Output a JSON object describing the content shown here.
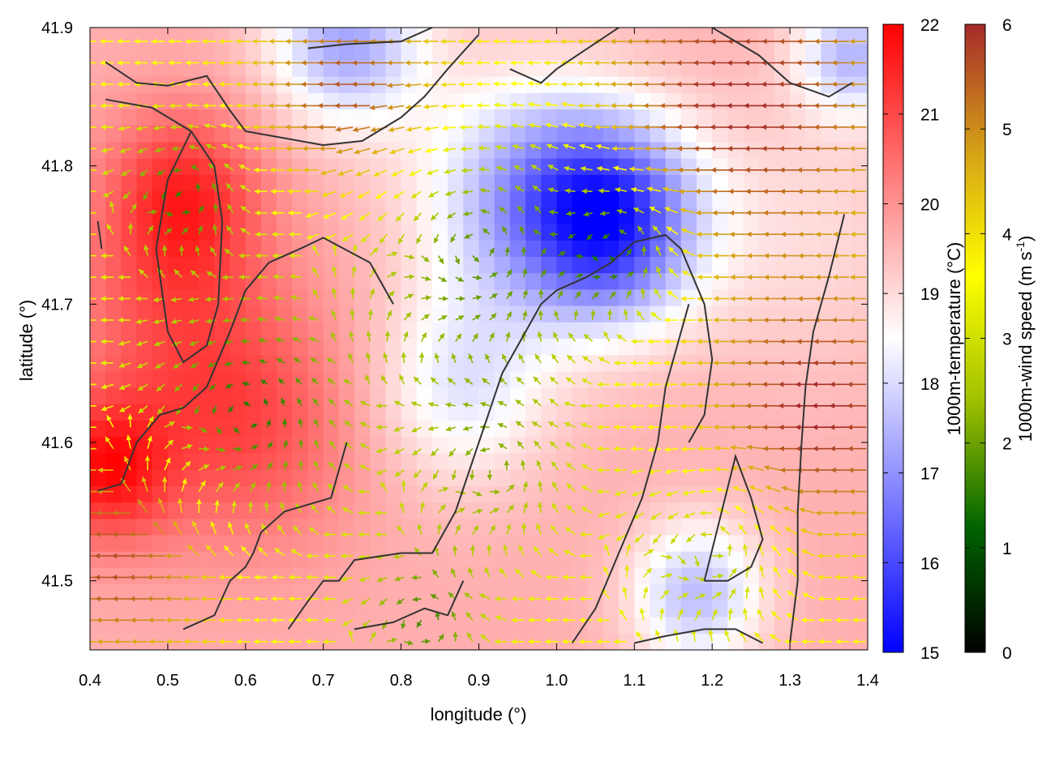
{
  "chart_data": {
    "type": "heatmap",
    "title": "",
    "xlabel": "longitude (°)",
    "ylabel": "latitude (°)",
    "xlim": [
      0.4,
      1.4
    ],
    "ylim": [
      41.45,
      41.9
    ],
    "x_ticks": [
      "0.4",
      "0.5",
      "0.6",
      "0.7",
      "0.8",
      "0.9",
      "1.0",
      "1.1",
      "1.2",
      "1.3",
      "1.4"
    ],
    "y_ticks": [
      "41.5",
      "41.6",
      "41.7",
      "41.8",
      "41.9"
    ],
    "colorbars": [
      {
        "label": "1000m-temperature (°C)",
        "range": [
          15,
          22
        ],
        "ticks": [
          "15",
          "16",
          "17",
          "18",
          "19",
          "20",
          "21",
          "22"
        ],
        "colors": [
          "#0000ff",
          "#ffffff",
          "#ff0000"
        ]
      },
      {
        "label_main": "1000m-wind speed (m s",
        "label_sup": "-1",
        "label_end": ")",
        "range": [
          0,
          6
        ],
        "ticks": [
          "0",
          "1",
          "2",
          "3",
          "4",
          "5",
          "6"
        ],
        "colors": [
          "#000000",
          "#006400",
          "#a0c000",
          "#ffff00",
          "#d4a017",
          "#a52a2a"
        ]
      }
    ],
    "temperature_field": {
      "background": 19.6,
      "features": [
        {
          "lon": 0.52,
          "lat": 41.78,
          "value": 21.2,
          "spread": 0.07
        },
        {
          "lon": 0.42,
          "lat": 41.58,
          "value": 21.6,
          "spread": 0.06
        },
        {
          "lon": 0.6,
          "lat": 41.61,
          "value": 20.9,
          "spread": 0.1
        },
        {
          "lon": 0.5,
          "lat": 41.7,
          "value": 20.6,
          "spread": 0.1
        },
        {
          "lon": 1.07,
          "lat": 41.76,
          "value": 16.0,
          "spread": 0.08
        },
        {
          "lon": 0.96,
          "lat": 41.78,
          "value": 17.6,
          "spread": 0.1
        },
        {
          "lon": 0.73,
          "lat": 41.89,
          "value": 17.3,
          "spread": 0.07
        },
        {
          "lon": 1.38,
          "lat": 41.88,
          "value": 17.6,
          "spread": 0.05
        },
        {
          "lon": 0.88,
          "lat": 41.64,
          "value": 18.2,
          "spread": 0.08
        },
        {
          "lon": 1.18,
          "lat": 41.49,
          "value": 17.6,
          "spread": 0.06
        },
        {
          "lon": 1.32,
          "lat": 41.75,
          "value": 19.0,
          "spread": 0.12
        }
      ]
    },
    "wind_field": {
      "background_speed": 3.6,
      "speed_features": [
        {
          "lon": 1.25,
          "lat": 41.85,
          "value": 6.0,
          "spread": 0.14
        },
        {
          "lon": 1.35,
          "lat": 41.62,
          "value": 6.0,
          "spread": 0.1
        },
        {
          "lon": 0.75,
          "lat": 41.85,
          "value": 5.8,
          "spread": 0.09
        },
        {
          "lon": 0.45,
          "lat": 41.52,
          "value": 5.8,
          "spread": 0.09
        },
        {
          "lon": 0.6,
          "lat": 41.62,
          "value": 1.4,
          "spread": 0.1
        },
        {
          "lon": 0.52,
          "lat": 41.78,
          "value": 1.6,
          "spread": 0.06
        },
        {
          "lon": 0.9,
          "lat": 41.74,
          "value": 1.8,
          "spread": 0.12
        },
        {
          "lon": 1.08,
          "lat": 41.74,
          "value": 1.6,
          "spread": 0.06
        },
        {
          "lon": 0.83,
          "lat": 41.47,
          "value": 1.8,
          "spread": 0.06
        },
        {
          "lon": 0.92,
          "lat": 41.58,
          "value": 2.4,
          "spread": 0.08
        },
        {
          "lon": 1.2,
          "lat": 41.52,
          "value": 2.6,
          "spread": 0.08
        }
      ],
      "prevailing_direction_deg": 180
    },
    "contours": [
      [
        [
          0.42,
          41.875
        ],
        [
          0.46,
          41.86
        ],
        [
          0.5,
          41.858
        ],
        [
          0.55,
          41.865
        ],
        [
          0.58,
          41.84
        ],
        [
          0.6,
          41.825
        ],
        [
          0.65,
          41.82
        ],
        [
          0.7,
          41.815
        ],
        [
          0.75,
          41.818
        ],
        [
          0.8,
          41.835
        ],
        [
          0.83,
          41.85
        ],
        [
          0.86,
          41.87
        ],
        [
          0.9,
          41.895
        ]
      ],
      [
        [
          0.42,
          41.848
        ],
        [
          0.48,
          41.842
        ],
        [
          0.53,
          41.825
        ],
        [
          0.56,
          41.8
        ],
        [
          0.57,
          41.76
        ],
        [
          0.565,
          41.7
        ],
        [
          0.55,
          41.67
        ],
        [
          0.52,
          41.658
        ],
        [
          0.5,
          41.68
        ],
        [
          0.485,
          41.74
        ],
        [
          0.5,
          41.79
        ],
        [
          0.53,
          41.825
        ]
      ],
      [
        [
          0.41,
          41.565
        ],
        [
          0.44,
          41.57
        ],
        [
          0.46,
          41.6
        ],
        [
          0.49,
          41.62
        ],
        [
          0.52,
          41.625
        ],
        [
          0.55,
          41.64
        ],
        [
          0.58,
          41.68
        ],
        [
          0.6,
          41.71
        ],
        [
          0.63,
          41.73
        ],
        [
          0.67,
          41.74
        ],
        [
          0.7,
          41.748
        ],
        [
          0.76,
          41.73
        ],
        [
          0.79,
          41.7
        ]
      ],
      [
        [
          0.52,
          41.465
        ],
        [
          0.56,
          41.475
        ],
        [
          0.58,
          41.5
        ],
        [
          0.6,
          41.51
        ],
        [
          0.61,
          41.52
        ],
        [
          0.62,
          41.535
        ],
        [
          0.65,
          41.55
        ],
        [
          0.68,
          41.555
        ],
        [
          0.71,
          41.56
        ],
        [
          0.72,
          41.58
        ],
        [
          0.73,
          41.6
        ]
      ],
      [
        [
          0.655,
          41.465
        ],
        [
          0.68,
          41.485
        ],
        [
          0.7,
          41.5
        ],
        [
          0.72,
          41.5
        ],
        [
          0.74,
          41.515
        ],
        [
          0.8,
          41.52
        ],
        [
          0.84,
          41.52
        ],
        [
          0.87,
          41.55
        ],
        [
          0.9,
          41.6
        ],
        [
          0.93,
          41.65
        ],
        [
          0.95,
          41.67
        ],
        [
          0.98,
          41.7
        ],
        [
          1.0,
          41.71
        ],
        [
          1.04,
          41.72
        ],
        [
          1.07,
          41.73
        ],
        [
          1.1,
          41.745
        ],
        [
          1.14,
          41.75
        ],
        [
          1.16,
          41.74
        ],
        [
          1.19,
          41.7
        ],
        [
          1.2,
          41.66
        ],
        [
          1.19,
          41.62
        ],
        [
          1.17,
          41.6
        ]
      ],
      [
        [
          0.74,
          41.465
        ],
        [
          0.79,
          41.47
        ],
        [
          0.83,
          41.48
        ],
        [
          0.86,
          41.475
        ],
        [
          0.88,
          41.5
        ]
      ],
      [
        [
          1.02,
          41.455
        ],
        [
          1.05,
          41.48
        ],
        [
          1.08,
          41.52
        ],
        [
          1.11,
          41.56
        ],
        [
          1.13,
          41.6
        ],
        [
          1.14,
          41.64
        ],
        [
          1.15,
          41.66
        ],
        [
          1.17,
          41.7
        ]
      ],
      [
        [
          1.19,
          41.5
        ],
        [
          1.22,
          41.5
        ],
        [
          1.25,
          41.51
        ],
        [
          1.265,
          41.53
        ],
        [
          1.25,
          41.56
        ],
        [
          1.23,
          41.59
        ],
        [
          1.19,
          41.5
        ]
      ],
      [
        [
          1.1,
          41.455
        ],
        [
          1.14,
          41.46
        ],
        [
          1.19,
          41.465
        ],
        [
          1.23,
          41.465
        ],
        [
          1.265,
          41.455
        ]
      ],
      [
        [
          1.3,
          41.455
        ],
        [
          1.31,
          41.5
        ],
        [
          1.31,
          41.55
        ],
        [
          1.315,
          41.6
        ],
        [
          1.32,
          41.64
        ],
        [
          1.33,
          41.68
        ],
        [
          1.35,
          41.72
        ],
        [
          1.37,
          41.765
        ]
      ],
      [
        [
          0.68,
          41.885
        ],
        [
          0.73,
          41.888
        ],
        [
          0.8,
          41.89
        ],
        [
          0.84,
          41.9
        ]
      ],
      [
        [
          0.94,
          41.87
        ],
        [
          0.98,
          41.86
        ],
        [
          1.0,
          41.87
        ],
        [
          1.04,
          41.885
        ],
        [
          1.08,
          41.9
        ]
      ],
      [
        [
          1.2,
          41.9
        ],
        [
          1.26,
          41.88
        ],
        [
          1.3,
          41.86
        ],
        [
          1.35,
          41.85
        ],
        [
          1.38,
          41.86
        ]
      ],
      [
        [
          0.41,
          41.76
        ],
        [
          0.415,
          41.74
        ]
      ]
    ]
  }
}
